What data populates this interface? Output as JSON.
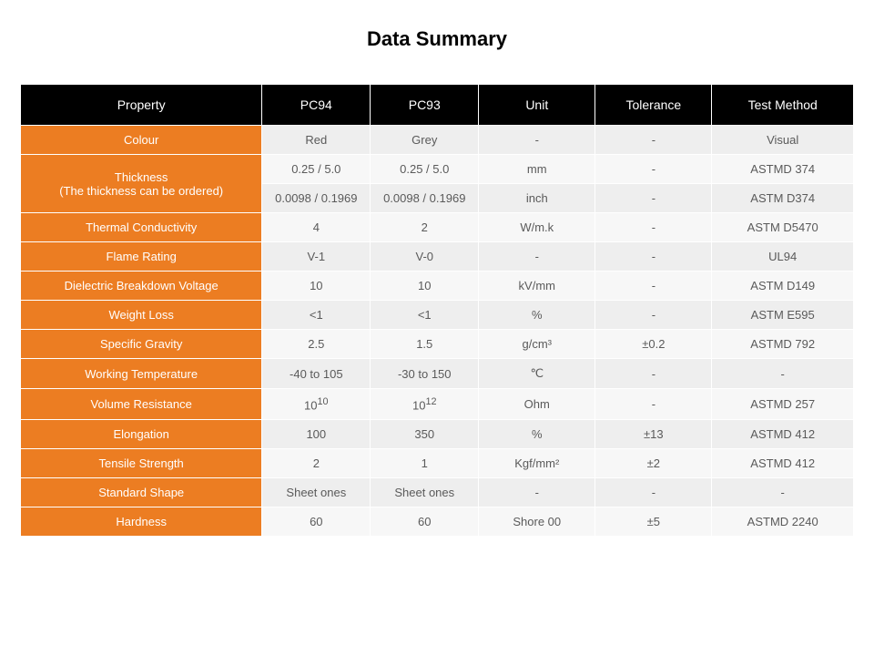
{
  "title": "Data Summary",
  "columns": [
    "Property",
    "PC94",
    "PC93",
    "Unit",
    "Tolerance",
    "Test Method"
  ],
  "col_widths_pct": [
    29,
    13,
    13,
    14,
    14,
    17
  ],
  "header": {
    "bg": "#000000",
    "fg": "#ffffff",
    "fontsize": 14
  },
  "property_col": {
    "bg": "#ec7d22",
    "fg": "#ffffff"
  },
  "stripe": {
    "odd_bg": "#eeeeee",
    "even_bg": "#f7f7f7",
    "fg": "#5a5a5a"
  },
  "rows": [
    {
      "property": "Colour",
      "pc94": "Red",
      "pc93": "Grey",
      "unit": "-",
      "tolerance": "-",
      "method": "Visual"
    },
    {
      "property": "Thickness\n(The thickness can be ordered)",
      "property_rowspan": 2,
      "pc94": "0.25 / 5.0",
      "pc93": "0.25 / 5.0",
      "unit": "mm",
      "tolerance": "-",
      "method": "ASTMD 374"
    },
    {
      "property": "",
      "pc94": "0.0098 / 0.1969",
      "pc93": "0.0098 / 0.1969",
      "unit": "inch",
      "tolerance": "-",
      "method": "ASTM D374"
    },
    {
      "property": "Thermal Conductivity",
      "pc94": "4",
      "pc93": "2",
      "unit": "W/m.k",
      "tolerance": "-",
      "method": "ASTM D5470"
    },
    {
      "property": "Flame Rating",
      "pc94": "V-1",
      "pc93": "V-0",
      "unit": "-",
      "tolerance": "-",
      "method": "UL94"
    },
    {
      "property": "Dielectric Breakdown Voltage",
      "pc94": "10",
      "pc93": "10",
      "unit": "kV/mm",
      "tolerance": "-",
      "method": "ASTM D149"
    },
    {
      "property": "Weight Loss",
      "pc94": "<1",
      "pc93": "<1",
      "unit": "%",
      "tolerance": "-",
      "method": "ASTM E595"
    },
    {
      "property": "Specific Gravity",
      "pc94": "2.5",
      "pc93": "1.5",
      "unit": "g/cm³",
      "tolerance": "±0.2",
      "method": "ASTMD 792"
    },
    {
      "property": "Working Temperature",
      "pc94": "-40 to 105",
      "pc93": "-30 to 150",
      "unit": "℃",
      "tolerance": "-",
      "method": "-"
    },
    {
      "property": "Volume Resistance",
      "pc94_html": "10<sup>10</sup>",
      "pc93_html": "10<sup>12</sup>",
      "unit": "Ohm",
      "tolerance": "-",
      "method": "ASTMD 257"
    },
    {
      "property": "Elongation",
      "pc94": "100",
      "pc93": "350",
      "unit": "%",
      "tolerance": "±13",
      "method": "ASTMD 412"
    },
    {
      "property": "Tensile Strength",
      "pc94": "2",
      "pc93": "1",
      "unit": "Kgf/mm²",
      "tolerance": "±2",
      "method": "ASTMD 412"
    },
    {
      "property": "Standard Shape",
      "pc94": "Sheet ones",
      "pc93": "Sheet ones",
      "unit": "-",
      "tolerance": "-",
      "method": "-"
    },
    {
      "property": "Hardness",
      "pc94": "60",
      "pc93": "60",
      "unit": "Shore 00",
      "tolerance": "±5",
      "method": "ASTMD 2240"
    }
  ]
}
